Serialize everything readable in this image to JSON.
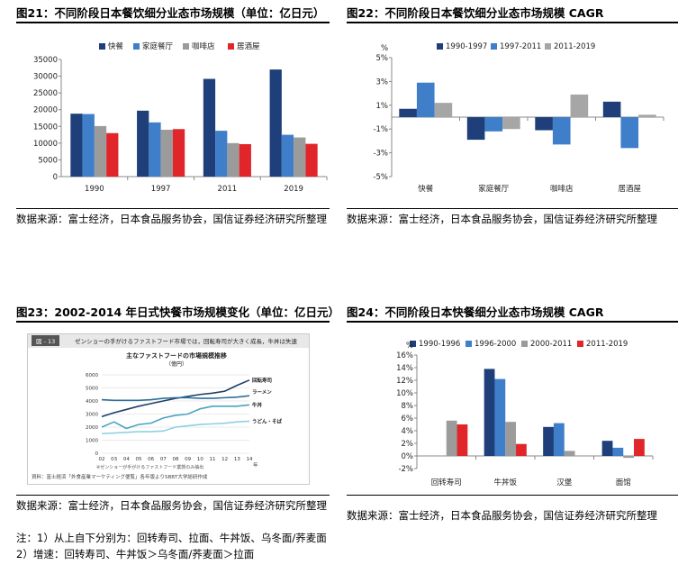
{
  "panels": {
    "p21": {
      "title": "图21：不同阶段日本餐饮细分业态市场规模（单位：亿日元）",
      "source": "数据来源：富士经济，日本食品服务协会，国信证券经济研究所整理"
    },
    "p22": {
      "title": "图22：不同阶段日本餐饮细分业态市场规模 CAGR",
      "source": "数据来源：富士经济，日本食品服务协会，国信证券经济研究所整理"
    },
    "p23": {
      "title": "图23：2002-2014 年日式快餐市场规模变化（单位：亿日元）",
      "source": "数据来源：富士经济，日本食品服务协会，国信证券经济研究所整理",
      "note": "注：1）从上自下分别为：回转寿司、拉面、牛丼饭、乌冬面/荞麦面 2）增速：回转寿司、牛丼饭＞乌冬面/荞麦面＞拉面",
      "inner_header": "ゼンショーの手がけるファストフード市場では，回転寿司が大きく成長，牛丼は失速",
      "inner_tag": "図 - 13",
      "inner_footer": "資料：富士経済「外食産業マーケティング便覧」各年版よりSBBT大学総研作成"
    },
    "p24": {
      "title": "图24：不同阶段日本快餐细分业态市场规模 CAGR",
      "source": "数据来源：富士经济，日本食品服务协会，国信证券经济研究所整理"
    }
  },
  "chart_data": [
    {
      "id": "c21",
      "type": "bar",
      "categories": [
        "1990",
        "1997",
        "2011",
        "2019"
      ],
      "series": [
        {
          "name": "快餐",
          "values": [
            18800,
            19700,
            29200,
            32000
          ],
          "color": "#1f3f7a"
        },
        {
          "name": "家庭餐厅",
          "values": [
            18700,
            16200,
            13700,
            12500
          ],
          "color": "#3f7ec9"
        },
        {
          "name": "咖啡店",
          "values": [
            15100,
            14000,
            10000,
            11700
          ],
          "color": "#9b9b9b"
        },
        {
          "name": "居酒屋",
          "values": [
            13000,
            14200,
            9700,
            9800
          ],
          "color": "#e0262a"
        }
      ],
      "ylim": [
        0,
        35000
      ],
      "yticks": [
        "0",
        "5000",
        "10000",
        "15000",
        "20000",
        "25000",
        "30000",
        "35000"
      ],
      "grid": false,
      "legend": "top"
    },
    {
      "id": "c22",
      "type": "bar",
      "categories": [
        "快餐",
        "家庭餐厅",
        "咖啡店",
        "居酒屋"
      ],
      "series": [
        {
          "name": "1990-1997",
          "values": [
            0.7,
            -1.9,
            -1.1,
            1.3
          ],
          "color": "#1f3f7a"
        },
        {
          "name": "1997-2011",
          "values": [
            2.9,
            -1.2,
            -2.3,
            -2.6
          ],
          "color": "#3f7ec9"
        },
        {
          "name": "2011-2019",
          "values": [
            1.2,
            -1.0,
            1.9,
            0.2
          ],
          "color": "#a6a6a6"
        }
      ],
      "ylim": [
        -5,
        5
      ],
      "yunit": "%",
      "yticks": [
        "5%",
        "3%",
        "1%",
        "-1%",
        "-3%",
        "-5%"
      ],
      "grid": false,
      "legend": "top"
    },
    {
      "id": "c23",
      "type": "line",
      "title": "主なファストフードの市場規模推移",
      "subtitle": "（億円）",
      "x": [
        "02",
        "03",
        "04",
        "05",
        "06",
        "07",
        "08",
        "09",
        "10",
        "11",
        "12",
        "13",
        "14"
      ],
      "xunit": "年",
      "series": [
        {
          "name": "回転寿司",
          "values": [
            2800,
            3100,
            3350,
            3600,
            3800,
            4000,
            4200,
            4350,
            4500,
            4600,
            4750,
            5200,
            5600
          ],
          "color": "#1f3f6a"
        },
        {
          "name": "ラーメン",
          "values": [
            4100,
            4050,
            4050,
            4050,
            4100,
            4200,
            4250,
            4250,
            4200,
            4200,
            4250,
            4300,
            4400
          ],
          "color": "#2f6f9a"
        },
        {
          "name": "牛丼",
          "values": [
            2000,
            2400,
            1900,
            2200,
            2300,
            2700,
            2900,
            3000,
            3400,
            3600,
            3600,
            3600,
            3700
          ],
          "color": "#4aa3c4"
        },
        {
          "name": "うどん・そば",
          "values": [
            1500,
            1550,
            1600,
            1650,
            1650,
            1700,
            2000,
            2100,
            2200,
            2250,
            2300,
            2400,
            2450
          ],
          "color": "#8fd0e0"
        }
      ],
      "ylim": [
        0,
        6000
      ],
      "yticks": [
        "0",
        "1000",
        "2000",
        "3000",
        "4000",
        "5000",
        "6000"
      ],
      "grid": true,
      "footnote": "※ゼンショーが手がけるファストフード業態のみ抽出"
    },
    {
      "id": "c24",
      "type": "bar",
      "categories": [
        "回转寿司",
        "牛丼饭",
        "汉堡",
        "面馆"
      ],
      "series": [
        {
          "name": "1990-1996",
          "values": [
            0,
            13.8,
            4.6,
            2.4
          ],
          "color": "#1f3f7a"
        },
        {
          "name": "1996-2000",
          "values": [
            0,
            12.2,
            5.2,
            1.3
          ],
          "color": "#3f7ec9"
        },
        {
          "name": "2000-2011",
          "values": [
            5.6,
            5.4,
            0.8,
            -0.3
          ],
          "color": "#9b9b9b"
        },
        {
          "name": "2011-2019",
          "values": [
            5.0,
            1.9,
            0,
            2.7
          ],
          "color": "#e0262a"
        }
      ],
      "ylim": [
        -2,
        16
      ],
      "yunit": "%",
      "yticks": [
        "-2%",
        "0%",
        "2%",
        "4%",
        "6%",
        "8%",
        "10%",
        "12%",
        "14%",
        "16%"
      ],
      "grid": false,
      "legend": "top"
    }
  ]
}
